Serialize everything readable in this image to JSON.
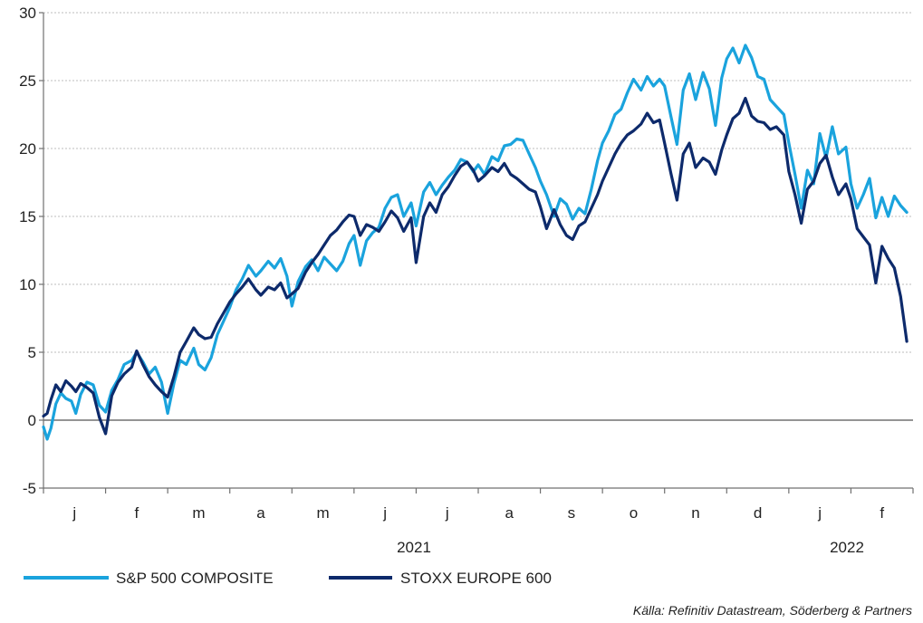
{
  "chart_data": {
    "type": "line",
    "yticks": [
      "30",
      "25",
      "20",
      "15",
      "10",
      "5",
      "0",
      "-5"
    ],
    "ylim": [
      -5,
      30
    ],
    "grid": true,
    "months": [
      "j",
      "f",
      "m",
      "a",
      "m",
      "j",
      "j",
      "a",
      "s",
      "o",
      "n",
      "d",
      "j",
      "f"
    ],
    "years": [
      "2021",
      "2022"
    ],
    "legend_position": "bottom-left",
    "colors": {
      "sp500": "#1aa3dd",
      "stoxx": "#0d2a6b"
    },
    "series": [
      {
        "name": "S&P 500 COMPOSITE",
        "key": "sp500",
        "values": [
          [
            0.0,
            -0.5
          ],
          [
            0.06,
            -1.4
          ],
          [
            0.12,
            -0.6
          ],
          [
            0.2,
            1.2
          ],
          [
            0.28,
            2.0
          ],
          [
            0.36,
            1.6
          ],
          [
            0.45,
            1.4
          ],
          [
            0.52,
            0.5
          ],
          [
            0.6,
            1.9
          ],
          [
            0.7,
            2.8
          ],
          [
            0.8,
            2.6
          ],
          [
            0.9,
            1.1
          ],
          [
            1.0,
            0.6
          ],
          [
            1.1,
            2.2
          ],
          [
            1.2,
            3.0
          ],
          [
            1.3,
            4.1
          ],
          [
            1.42,
            4.4
          ],
          [
            1.5,
            5.0
          ],
          [
            1.6,
            4.3
          ],
          [
            1.7,
            3.4
          ],
          [
            1.8,
            3.9
          ],
          [
            1.9,
            2.8
          ],
          [
            2.0,
            0.5
          ],
          [
            2.1,
            2.7
          ],
          [
            2.2,
            4.4
          ],
          [
            2.3,
            4.1
          ],
          [
            2.42,
            5.3
          ],
          [
            2.5,
            4.1
          ],
          [
            2.6,
            3.7
          ],
          [
            2.7,
            4.6
          ],
          [
            2.8,
            6.3
          ],
          [
            2.9,
            7.3
          ],
          [
            3.0,
            8.3
          ],
          [
            3.1,
            9.6
          ],
          [
            3.2,
            10.4
          ],
          [
            3.3,
            11.4
          ],
          [
            3.42,
            10.6
          ],
          [
            3.5,
            11.0
          ],
          [
            3.62,
            11.7
          ],
          [
            3.72,
            11.2
          ],
          [
            3.82,
            11.9
          ],
          [
            3.92,
            10.6
          ],
          [
            4.0,
            8.4
          ],
          [
            4.1,
            10.2
          ],
          [
            4.22,
            11.3
          ],
          [
            4.32,
            11.8
          ],
          [
            4.42,
            11.0
          ],
          [
            4.52,
            12.0
          ],
          [
            4.62,
            11.5
          ],
          [
            4.72,
            11.0
          ],
          [
            4.82,
            11.7
          ],
          [
            4.92,
            13.0
          ],
          [
            5.0,
            13.6
          ],
          [
            5.1,
            11.4
          ],
          [
            5.2,
            13.2
          ],
          [
            5.3,
            13.8
          ],
          [
            5.4,
            14.2
          ],
          [
            5.5,
            15.6
          ],
          [
            5.6,
            16.4
          ],
          [
            5.7,
            16.6
          ],
          [
            5.8,
            15.0
          ],
          [
            5.92,
            16.0
          ],
          [
            6.0,
            14.3
          ],
          [
            6.12,
            16.8
          ],
          [
            6.22,
            17.5
          ],
          [
            6.32,
            16.6
          ],
          [
            6.42,
            17.3
          ],
          [
            6.52,
            17.9
          ],
          [
            6.62,
            18.4
          ],
          [
            6.72,
            19.2
          ],
          [
            6.82,
            19.0
          ],
          [
            6.92,
            18.3
          ],
          [
            7.0,
            18.8
          ],
          [
            7.1,
            18.1
          ],
          [
            7.22,
            19.4
          ],
          [
            7.32,
            19.1
          ],
          [
            7.42,
            20.2
          ],
          [
            7.52,
            20.3
          ],
          [
            7.62,
            20.7
          ],
          [
            7.72,
            20.6
          ],
          [
            7.82,
            19.6
          ],
          [
            7.92,
            18.6
          ],
          [
            8.0,
            17.6
          ],
          [
            8.1,
            16.6
          ],
          [
            8.22,
            15.0
          ],
          [
            8.32,
            16.3
          ],
          [
            8.42,
            15.9
          ],
          [
            8.52,
            14.8
          ],
          [
            8.62,
            15.6
          ],
          [
            8.72,
            15.2
          ],
          [
            8.82,
            17.0
          ],
          [
            8.92,
            19.1
          ],
          [
            9.0,
            20.4
          ],
          [
            9.1,
            21.3
          ],
          [
            9.2,
            22.5
          ],
          [
            9.3,
            22.9
          ],
          [
            9.4,
            24.1
          ],
          [
            9.5,
            25.1
          ],
          [
            9.62,
            24.3
          ],
          [
            9.72,
            25.3
          ],
          [
            9.82,
            24.6
          ],
          [
            9.92,
            25.1
          ],
          [
            10.0,
            24.6
          ],
          [
            10.1,
            22.4
          ],
          [
            10.2,
            20.3
          ],
          [
            10.3,
            24.3
          ],
          [
            10.4,
            25.5
          ],
          [
            10.5,
            23.6
          ],
          [
            10.62,
            25.6
          ],
          [
            10.72,
            24.4
          ],
          [
            10.82,
            21.7
          ],
          [
            10.92,
            25.2
          ],
          [
            11.0,
            26.6
          ],
          [
            11.1,
            27.4
          ],
          [
            11.2,
            26.3
          ],
          [
            11.3,
            27.6
          ],
          [
            11.4,
            26.7
          ],
          [
            11.5,
            25.3
          ],
          [
            11.6,
            25.1
          ],
          [
            11.7,
            23.6
          ],
          [
            11.8,
            23.1
          ],
          [
            11.92,
            22.5
          ],
          [
            12.0,
            20.4
          ],
          [
            12.1,
            18.1
          ],
          [
            12.2,
            15.6
          ],
          [
            12.3,
            18.4
          ],
          [
            12.4,
            17.4
          ],
          [
            12.5,
            21.1
          ],
          [
            12.6,
            19.3
          ],
          [
            12.7,
            21.6
          ],
          [
            12.8,
            19.6
          ],
          [
            12.92,
            20.1
          ],
          [
            13.0,
            17.4
          ],
          [
            13.1,
            15.6
          ],
          [
            13.2,
            16.6
          ],
          [
            13.3,
            17.8
          ],
          [
            13.4,
            14.9
          ],
          [
            13.5,
            16.4
          ],
          [
            13.6,
            15.0
          ],
          [
            13.7,
            16.5
          ],
          [
            13.8,
            15.8
          ],
          [
            13.9,
            15.3
          ]
        ]
      },
      {
        "name": "STOXX EUROPE 600",
        "key": "stoxx",
        "values": [
          [
            0.0,
            0.3
          ],
          [
            0.06,
            0.5
          ],
          [
            0.12,
            1.5
          ],
          [
            0.2,
            2.6
          ],
          [
            0.28,
            2.1
          ],
          [
            0.36,
            2.9
          ],
          [
            0.45,
            2.5
          ],
          [
            0.52,
            2.1
          ],
          [
            0.6,
            2.7
          ],
          [
            0.7,
            2.4
          ],
          [
            0.8,
            2.0
          ],
          [
            0.9,
            0.2
          ],
          [
            1.0,
            -1.0
          ],
          [
            1.1,
            1.8
          ],
          [
            1.2,
            2.8
          ],
          [
            1.3,
            3.4
          ],
          [
            1.42,
            3.9
          ],
          [
            1.5,
            5.1
          ],
          [
            1.6,
            4.1
          ],
          [
            1.7,
            3.2
          ],
          [
            1.8,
            2.6
          ],
          [
            1.9,
            2.1
          ],
          [
            2.0,
            1.7
          ],
          [
            2.1,
            3.2
          ],
          [
            2.2,
            5.0
          ],
          [
            2.3,
            5.8
          ],
          [
            2.42,
            6.8
          ],
          [
            2.5,
            6.3
          ],
          [
            2.6,
            6.0
          ],
          [
            2.7,
            6.1
          ],
          [
            2.8,
            7.1
          ],
          [
            2.9,
            7.9
          ],
          [
            3.0,
            8.7
          ],
          [
            3.1,
            9.3
          ],
          [
            3.2,
            9.8
          ],
          [
            3.3,
            10.4
          ],
          [
            3.42,
            9.6
          ],
          [
            3.5,
            9.2
          ],
          [
            3.62,
            9.8
          ],
          [
            3.72,
            9.6
          ],
          [
            3.82,
            10.1
          ],
          [
            3.92,
            9.0
          ],
          [
            4.0,
            9.3
          ],
          [
            4.1,
            9.7
          ],
          [
            4.22,
            10.9
          ],
          [
            4.32,
            11.6
          ],
          [
            4.42,
            12.2
          ],
          [
            4.52,
            12.9
          ],
          [
            4.62,
            13.6
          ],
          [
            4.72,
            14.0
          ],
          [
            4.82,
            14.6
          ],
          [
            4.92,
            15.1
          ],
          [
            5.0,
            15.0
          ],
          [
            5.1,
            13.6
          ],
          [
            5.2,
            14.4
          ],
          [
            5.3,
            14.2
          ],
          [
            5.4,
            13.9
          ],
          [
            5.5,
            14.6
          ],
          [
            5.6,
            15.4
          ],
          [
            5.7,
            14.9
          ],
          [
            5.8,
            13.9
          ],
          [
            5.92,
            14.9
          ],
          [
            6.0,
            11.6
          ],
          [
            6.12,
            15.0
          ],
          [
            6.22,
            16.0
          ],
          [
            6.32,
            15.3
          ],
          [
            6.42,
            16.6
          ],
          [
            6.52,
            17.2
          ],
          [
            6.62,
            18.0
          ],
          [
            6.72,
            18.7
          ],
          [
            6.82,
            19.0
          ],
          [
            6.92,
            18.4
          ],
          [
            7.0,
            17.6
          ],
          [
            7.1,
            18.0
          ],
          [
            7.22,
            18.6
          ],
          [
            7.32,
            18.3
          ],
          [
            7.42,
            18.9
          ],
          [
            7.52,
            18.1
          ],
          [
            7.62,
            17.8
          ],
          [
            7.72,
            17.4
          ],
          [
            7.82,
            17.0
          ],
          [
            7.92,
            16.8
          ],
          [
            8.0,
            15.7
          ],
          [
            8.1,
            14.1
          ],
          [
            8.22,
            15.5
          ],
          [
            8.32,
            14.4
          ],
          [
            8.42,
            13.6
          ],
          [
            8.52,
            13.3
          ],
          [
            8.62,
            14.3
          ],
          [
            8.72,
            14.6
          ],
          [
            8.82,
            15.6
          ],
          [
            8.92,
            16.6
          ],
          [
            9.0,
            17.6
          ],
          [
            9.1,
            18.6
          ],
          [
            9.2,
            19.6
          ],
          [
            9.3,
            20.4
          ],
          [
            9.4,
            21.0
          ],
          [
            9.5,
            21.3
          ],
          [
            9.62,
            21.8
          ],
          [
            9.72,
            22.6
          ],
          [
            9.82,
            21.9
          ],
          [
            9.92,
            22.1
          ],
          [
            10.0,
            20.4
          ],
          [
            10.1,
            18.2
          ],
          [
            10.2,
            16.2
          ],
          [
            10.3,
            19.6
          ],
          [
            10.4,
            20.4
          ],
          [
            10.5,
            18.6
          ],
          [
            10.62,
            19.3
          ],
          [
            10.72,
            19.0
          ],
          [
            10.82,
            18.1
          ],
          [
            10.92,
            19.9
          ],
          [
            11.0,
            21.0
          ],
          [
            11.1,
            22.2
          ],
          [
            11.2,
            22.6
          ],
          [
            11.3,
            23.7
          ],
          [
            11.4,
            22.4
          ],
          [
            11.5,
            22.0
          ],
          [
            11.6,
            21.9
          ],
          [
            11.7,
            21.4
          ],
          [
            11.8,
            21.6
          ],
          [
            11.92,
            21.0
          ],
          [
            12.0,
            18.3
          ],
          [
            12.1,
            16.6
          ],
          [
            12.2,
            14.5
          ],
          [
            12.3,
            17.0
          ],
          [
            12.4,
            17.6
          ],
          [
            12.5,
            18.9
          ],
          [
            12.6,
            19.5
          ],
          [
            12.7,
            17.9
          ],
          [
            12.8,
            16.6
          ],
          [
            12.92,
            17.4
          ],
          [
            13.0,
            16.3
          ],
          [
            13.1,
            14.1
          ],
          [
            13.2,
            13.5
          ],
          [
            13.3,
            12.9
          ],
          [
            13.4,
            10.1
          ],
          [
            13.5,
            12.8
          ],
          [
            13.6,
            11.9
          ],
          [
            13.7,
            11.2
          ],
          [
            13.8,
            9.1
          ],
          [
            13.9,
            5.8
          ]
        ]
      }
    ]
  },
  "source_note": "Källa: Refinitiv Datastream, Söderberg & Partners"
}
